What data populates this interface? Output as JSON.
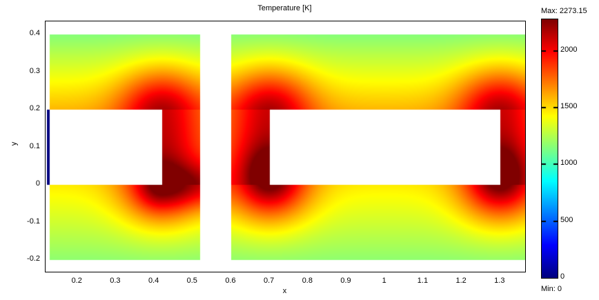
{
  "chart_data": {
    "type": "heatmap",
    "title": "Temperature [K]",
    "xlabel": "x",
    "ylabel": "y",
    "x_ticks": {
      "values": [
        0.2,
        0.3,
        0.4,
        0.5,
        0.6,
        0.7,
        0.8,
        0.9,
        1,
        1.1,
        1.2,
        1.3
      ],
      "labels": [
        "0.2",
        "0.3",
        "0.4",
        "0.5",
        "0.6",
        "0.7",
        "0.8",
        "0.9",
        "1",
        "1.1",
        "1.2",
        "1.3"
      ]
    },
    "y_ticks": {
      "values": [
        0.4,
        0.3,
        0.2,
        0.1,
        0,
        -0.1,
        -0.2
      ],
      "labels": [
        "0.4",
        "0.3",
        "0.2",
        "0.1",
        "0",
        "-0.1",
        "-0.2"
      ]
    },
    "colorbar": {
      "vmin": 0,
      "vmax": 2273.15,
      "max_label": "Max: 2273.15",
      "min_label": "Min: 0",
      "ticks": [
        2000,
        1500,
        1000,
        500,
        0
      ],
      "tick_labels": [
        "2000",
        "1500",
        "1000",
        "500",
        "0"
      ],
      "colormap": "jet"
    },
    "axis": {
      "xmin": 0.117,
      "xmax": 1.365,
      "ymin": -0.2312,
      "ymax": 0.4349
    },
    "field": {
      "domains": [
        {
          "x0": 0.128,
          "x1": 0.52,
          "y0": -0.2,
          "y1": 0.4
        },
        {
          "x0": 0.6,
          "x1": 1.365,
          "y0": -0.2,
          "y1": 0.4
        }
      ],
      "holes": [
        {
          "x0": 0.128,
          "x1": 0.42,
          "y0": 0,
          "y1": 0.2
        },
        {
          "x0": 0.7,
          "x1": 1.3,
          "y0": 0,
          "y1": 0.2
        }
      ],
      "cold_strip": {
        "x0": 0.1205,
        "x1": 0.128,
        "y0": 0,
        "y1": 0.2,
        "temp": 0
      },
      "base": {
        "t_y_neg02": 1170,
        "t_y_0": 1460,
        "t_y_02": 1580,
        "t_y_04": 1150,
        "col_top": 1500,
        "col_grad": 400
      },
      "edge_sources": {
        "x_positions": [
          0.42,
          0.7,
          1.3
        ],
        "y0": 0,
        "y1": 0.2,
        "amp": 600,
        "sigma": 0.11
      },
      "hot_spots": [
        {
          "type": "hseg",
          "y": 0,
          "x0": 0.42,
          "x1": 0.52,
          "amp": 350,
          "sigma": 0.06
        },
        {
          "type": "point",
          "x": 0.7,
          "y": 0.03,
          "amp": 350,
          "sigma": 0.07
        },
        {
          "type": "point",
          "x": 1.3,
          "y": 0.03,
          "amp": 350,
          "sigma": 0.07
        }
      ]
    }
  }
}
